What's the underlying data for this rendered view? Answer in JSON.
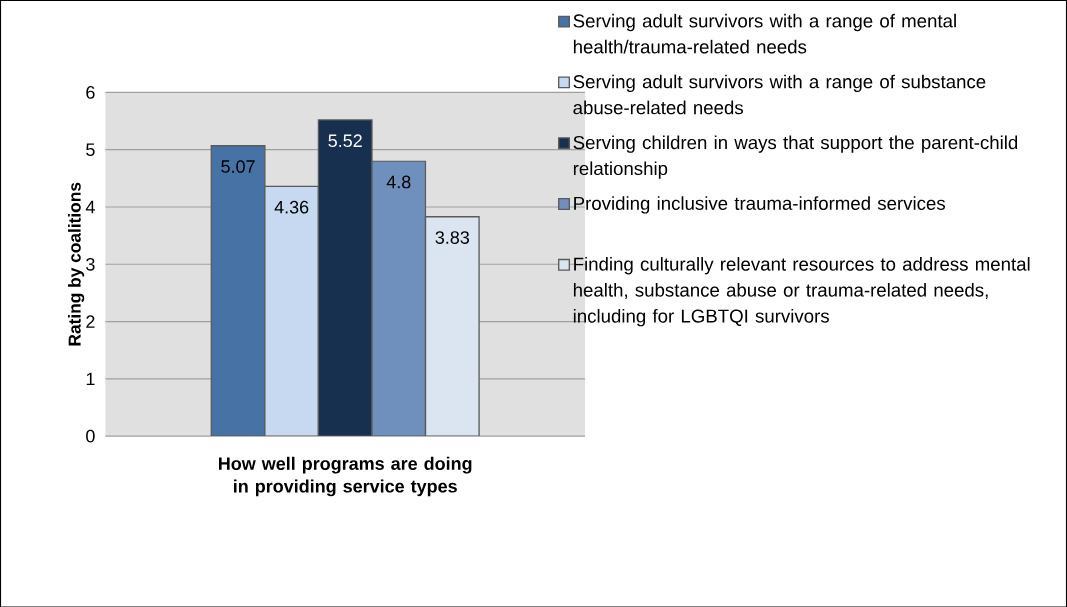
{
  "chart_data": {
    "type": "bar",
    "categories": [
      "How well programs are doing in providing service types"
    ],
    "ylabel": "Rating by coalitions",
    "ylim": [
      0,
      6
    ],
    "yticks": [
      0,
      1,
      2,
      3,
      4,
      5,
      6
    ],
    "grid": "y",
    "legend": "right",
    "data_labels": true,
    "series": [
      {
        "name": "Serving adult survivors with a range of mental health/trauma-related needs",
        "color": "#4672a5",
        "values": [
          5.07
        ]
      },
      {
        "name": "Serving adult survivors with a range of substance abuse-related needs",
        "color": "#c6d9f1",
        "values": [
          4.36
        ]
      },
      {
        "name": "Serving children in ways that support the parent-child relationship",
        "color": "#17304f",
        "values": [
          5.52
        ]
      },
      {
        "name": "Providing inclusive trauma-informed services",
        "color": "#6f8fbc",
        "values": [
          4.8
        ]
      },
      {
        "name": "Finding culturally relevant resources to address mental health, substance abuse or trauma-related needs, including for LGBTQI survivors",
        "color": "#dbe5f1",
        "values": [
          3.83
        ]
      }
    ]
  }
}
